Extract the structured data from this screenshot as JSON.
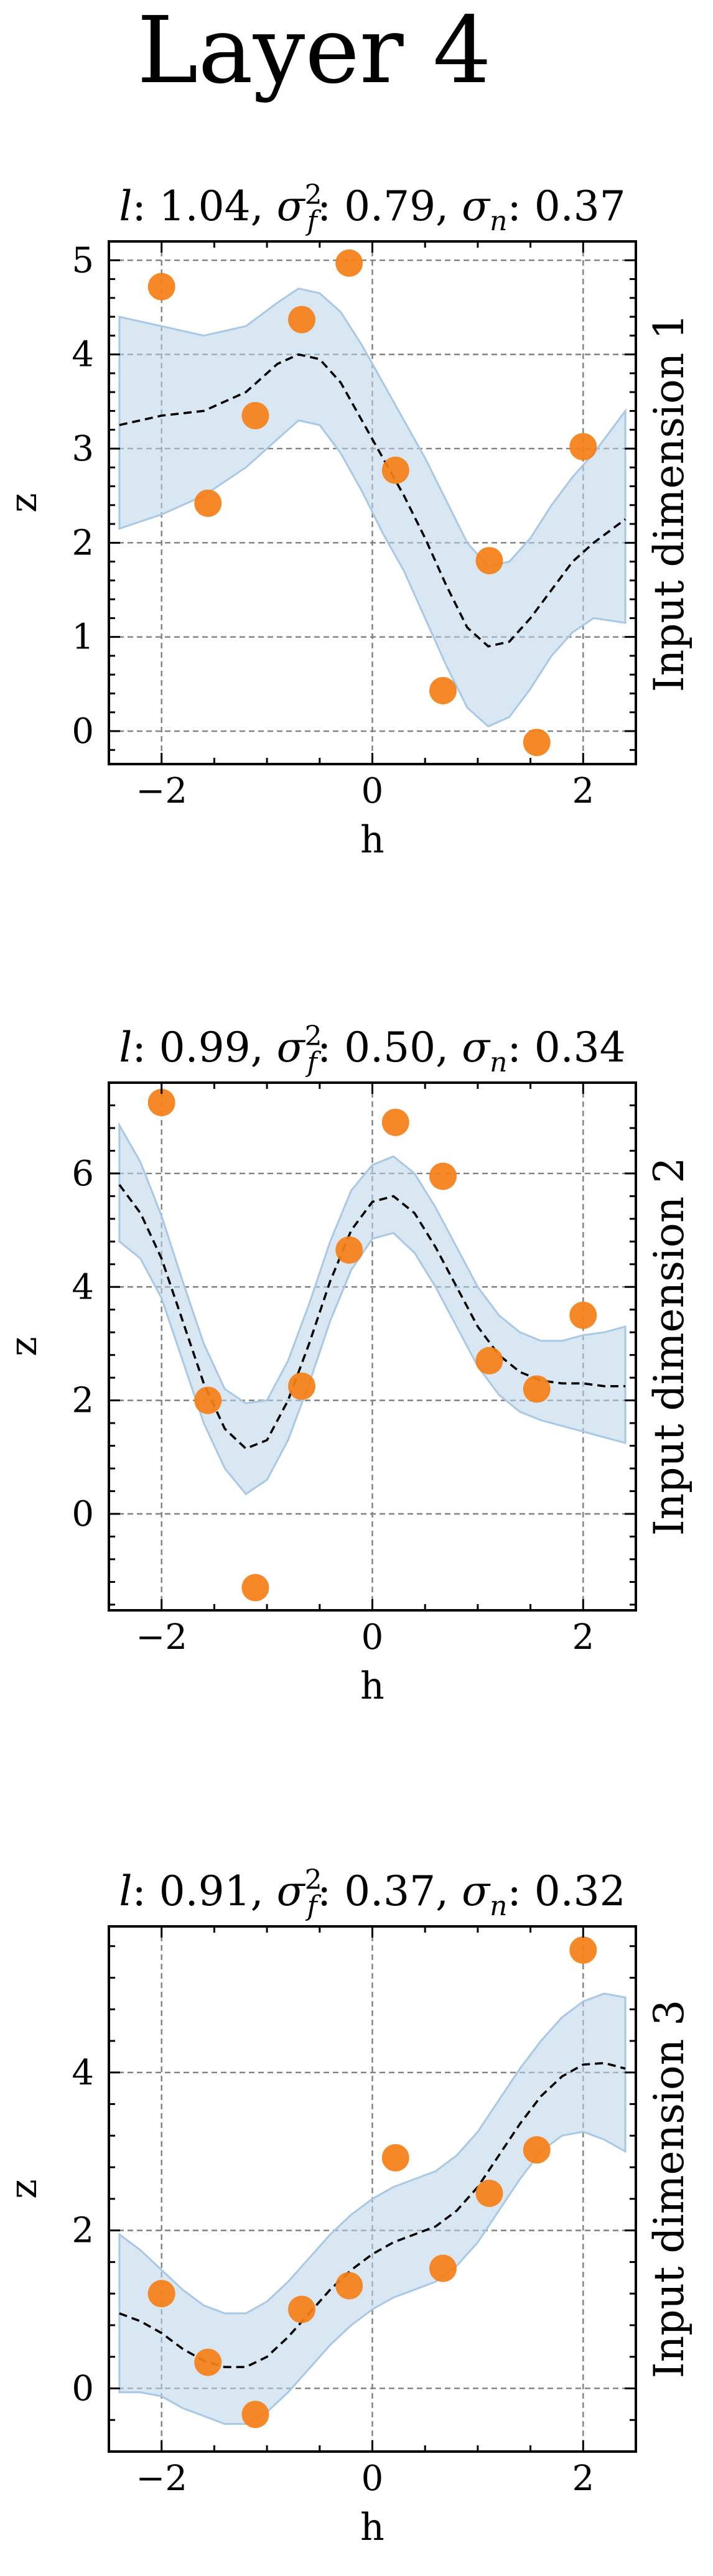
{
  "figure": {
    "title": "Layer 4"
  },
  "chart_data": [
    {
      "type": "scatter",
      "title_parts": {
        "l": "1.04",
        "sf2": "0.79",
        "sn": "0.37"
      },
      "xlabel": "h",
      "ylabel": "z",
      "right_label": "Input dimension 1",
      "xlim": [
        -2.5,
        2.5
      ],
      "ylim": [
        -0.35,
        5.2
      ],
      "xticks": [
        -2,
        0,
        2
      ],
      "yticks": [
        0,
        1,
        2,
        3,
        4,
        5
      ],
      "grid": true,
      "points": {
        "x": [
          -2.0,
          -1.56,
          -1.11,
          -0.67,
          -0.22,
          0.22,
          0.67,
          1.11,
          1.56,
          2.0
        ],
        "y": [
          4.72,
          2.42,
          3.35,
          4.37,
          4.97,
          2.77,
          0.43,
          1.81,
          -0.12,
          3.02
        ]
      },
      "mean": {
        "x": [
          -2.4,
          -2.0,
          -1.6,
          -1.2,
          -0.9,
          -0.7,
          -0.5,
          -0.3,
          -0.1,
          0.1,
          0.3,
          0.5,
          0.7,
          0.9,
          1.1,
          1.3,
          1.5,
          1.7,
          1.9,
          2.1,
          2.4
        ],
        "y": [
          3.25,
          3.35,
          3.4,
          3.6,
          3.9,
          4.0,
          3.95,
          3.7,
          3.3,
          2.9,
          2.5,
          2.05,
          1.55,
          1.1,
          0.9,
          0.95,
          1.2,
          1.5,
          1.8,
          2.0,
          2.25
        ]
      },
      "band": {
        "x": [
          -2.4,
          -2.0,
          -1.6,
          -1.2,
          -0.9,
          -0.7,
          -0.5,
          -0.3,
          -0.1,
          0.1,
          0.3,
          0.5,
          0.7,
          0.9,
          1.1,
          1.3,
          1.5,
          1.7,
          1.9,
          2.1,
          2.4
        ],
        "lower": [
          2.15,
          2.3,
          2.5,
          2.8,
          3.1,
          3.3,
          3.25,
          2.95,
          2.55,
          2.1,
          1.7,
          1.2,
          0.7,
          0.25,
          0.05,
          0.15,
          0.45,
          0.8,
          1.05,
          1.2,
          1.15
        ],
        "upper": [
          4.4,
          4.3,
          4.2,
          4.3,
          4.55,
          4.7,
          4.65,
          4.45,
          4.1,
          3.7,
          3.3,
          2.9,
          2.45,
          2.0,
          1.75,
          1.8,
          2.05,
          2.4,
          2.7,
          2.95,
          3.4
        ]
      }
    },
    {
      "type": "scatter",
      "title_parts": {
        "l": "0.99",
        "sf2": "0.50",
        "sn": "0.34"
      },
      "xlabel": "h",
      "ylabel": "z",
      "right_label": "Input dimension 2",
      "xlim": [
        -2.5,
        2.5
      ],
      "ylim": [
        -1.7,
        7.6
      ],
      "xticks": [
        -2,
        0,
        2
      ],
      "yticks": [
        0,
        2,
        4,
        6
      ],
      "grid": true,
      "points": {
        "x": [
          -2.0,
          -1.56,
          -1.11,
          -0.67,
          -0.22,
          0.22,
          0.67,
          1.11,
          1.56,
          2.0
        ],
        "y": [
          7.25,
          2.0,
          -1.3,
          2.25,
          4.65,
          6.9,
          5.95,
          2.7,
          2.2,
          3.5
        ]
      },
      "mean": {
        "x": [
          -2.4,
          -2.2,
          -2.0,
          -1.8,
          -1.6,
          -1.4,
          -1.2,
          -1.0,
          -0.8,
          -0.6,
          -0.4,
          -0.2,
          0.0,
          0.2,
          0.4,
          0.6,
          0.8,
          1.0,
          1.2,
          1.4,
          1.6,
          1.8,
          2.0,
          2.2,
          2.4
        ],
        "y": [
          5.8,
          5.3,
          4.5,
          3.4,
          2.3,
          1.5,
          1.15,
          1.3,
          2.0,
          3.0,
          4.1,
          5.0,
          5.5,
          5.6,
          5.3,
          4.7,
          4.0,
          3.3,
          2.8,
          2.5,
          2.35,
          2.3,
          2.3,
          2.25,
          2.25
        ]
      },
      "band": {
        "x": [
          -2.4,
          -2.2,
          -2.0,
          -1.8,
          -1.6,
          -1.4,
          -1.2,
          -1.0,
          -0.8,
          -0.6,
          -0.4,
          -0.2,
          0.0,
          0.2,
          0.4,
          0.6,
          0.8,
          1.0,
          1.2,
          1.4,
          1.6,
          1.8,
          2.0,
          2.2,
          2.4
        ],
        "lower": [
          4.8,
          4.5,
          3.8,
          2.7,
          1.6,
          0.8,
          0.35,
          0.6,
          1.3,
          2.3,
          3.4,
          4.3,
          4.85,
          4.95,
          4.6,
          4.0,
          3.3,
          2.6,
          2.1,
          1.8,
          1.65,
          1.55,
          1.45,
          1.35,
          1.25
        ],
        "upper": [
          6.85,
          6.2,
          5.25,
          4.1,
          3.0,
          2.2,
          1.95,
          2.0,
          2.7,
          3.7,
          4.8,
          5.7,
          6.15,
          6.3,
          6.0,
          5.4,
          4.7,
          4.0,
          3.5,
          3.2,
          3.05,
          3.05,
          3.15,
          3.2,
          3.3
        ]
      }
    },
    {
      "type": "scatter",
      "title_parts": {
        "l": "0.91",
        "sf2": "0.37",
        "sn": "0.32"
      },
      "xlabel": "h",
      "ylabel": "z",
      "right_label": "Input dimension 3",
      "xlim": [
        -2.5,
        2.5
      ],
      "ylim": [
        -0.8,
        5.85
      ],
      "xticks": [
        -2,
        0,
        2
      ],
      "yticks": [
        0,
        2,
        4
      ],
      "grid": true,
      "points": {
        "x": [
          -2.0,
          -1.56,
          -1.11,
          -0.67,
          -0.22,
          0.22,
          0.67,
          1.11,
          1.56,
          2.0
        ],
        "y": [
          1.2,
          0.33,
          -0.33,
          1.0,
          1.3,
          2.92,
          1.52,
          2.47,
          3.02,
          5.55
        ]
      },
      "mean": {
        "x": [
          -2.4,
          -2.2,
          -2.0,
          -1.8,
          -1.6,
          -1.4,
          -1.2,
          -1.0,
          -0.8,
          -0.6,
          -0.4,
          -0.2,
          0.0,
          0.2,
          0.4,
          0.6,
          0.8,
          1.0,
          1.2,
          1.4,
          1.6,
          1.8,
          2.0,
          2.2,
          2.4
        ],
        "y": [
          0.95,
          0.85,
          0.7,
          0.5,
          0.35,
          0.27,
          0.27,
          0.4,
          0.65,
          0.95,
          1.25,
          1.5,
          1.7,
          1.85,
          1.95,
          2.05,
          2.25,
          2.55,
          2.95,
          3.35,
          3.7,
          3.95,
          4.1,
          4.12,
          4.05
        ]
      },
      "band": {
        "x": [
          -2.4,
          -2.2,
          -2.0,
          -1.8,
          -1.6,
          -1.4,
          -1.2,
          -1.0,
          -0.8,
          -0.6,
          -0.4,
          -0.2,
          0.0,
          0.2,
          0.4,
          0.6,
          0.8,
          1.0,
          1.2,
          1.4,
          1.6,
          1.8,
          2.0,
          2.2,
          2.4
        ],
        "lower": [
          -0.05,
          -0.05,
          -0.1,
          -0.25,
          -0.35,
          -0.45,
          -0.45,
          -0.3,
          -0.05,
          0.25,
          0.55,
          0.8,
          1.0,
          1.15,
          1.25,
          1.35,
          1.55,
          1.85,
          2.25,
          2.65,
          3.0,
          3.2,
          3.25,
          3.15,
          3.0
        ],
        "upper": [
          1.95,
          1.75,
          1.5,
          1.25,
          1.05,
          0.95,
          0.95,
          1.1,
          1.35,
          1.65,
          1.95,
          2.2,
          2.4,
          2.55,
          2.65,
          2.75,
          2.95,
          3.25,
          3.65,
          4.05,
          4.4,
          4.7,
          4.9,
          5.0,
          4.95
        ]
      }
    }
  ]
}
